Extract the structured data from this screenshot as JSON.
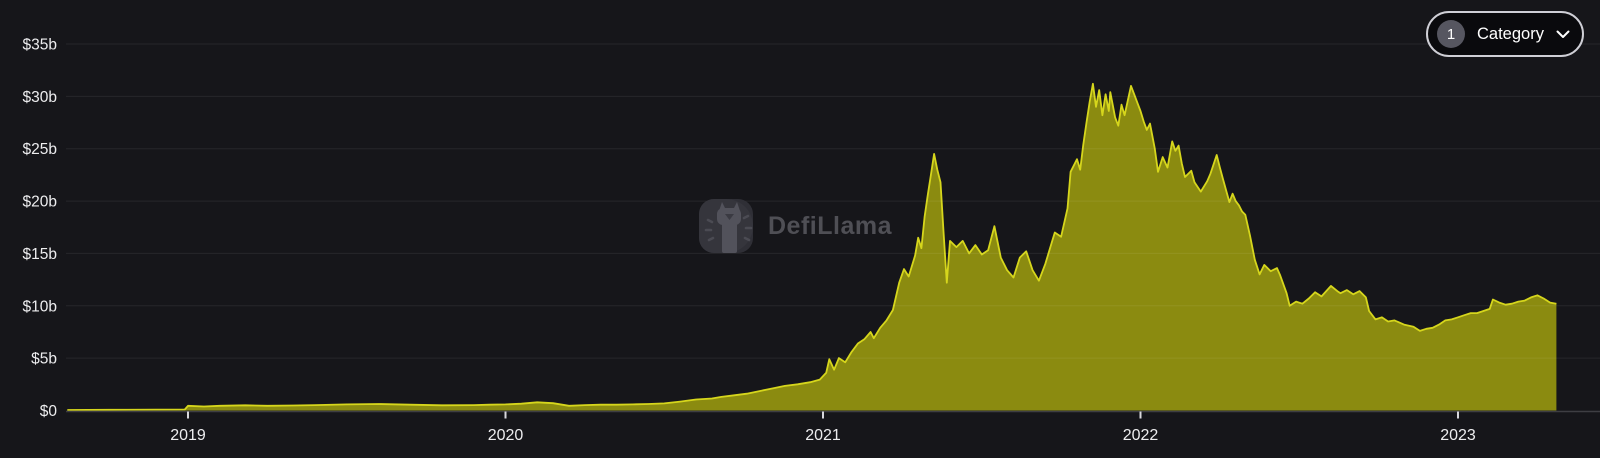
{
  "watermark": {
    "brand": "DefiLlama"
  },
  "controls": {
    "category_filter": {
      "count": "1",
      "label": "Category",
      "chevron_icon": "chevron-down"
    }
  },
  "chart_data": {
    "type": "area",
    "title": "",
    "xlabel": "",
    "ylabel": "",
    "grid": true,
    "legend": false,
    "ylim": [
      0,
      35
    ],
    "y_ticks": [
      {
        "label": "$0",
        "v": 0
      },
      {
        "label": "$5b",
        "v": 5
      },
      {
        "label": "$10b",
        "v": 10
      },
      {
        "label": "$15b",
        "v": 15
      },
      {
        "label": "$20b",
        "v": 20
      },
      {
        "label": "$25b",
        "v": 25
      },
      {
        "label": "$30b",
        "v": 30
      },
      {
        "label": "$35b",
        "v": 35
      }
    ],
    "x_ticks": [
      {
        "label": "2019",
        "t": 2019
      },
      {
        "label": "2020",
        "t": 2020
      },
      {
        "label": "2021",
        "t": 2021
      },
      {
        "label": "2022",
        "t": 2022
      },
      {
        "label": "2023",
        "t": 2023
      }
    ],
    "colors": {
      "background": "#16161a",
      "area_fill": "#8b8b10",
      "area_line": "#d6d61c",
      "grid_line": "rgba(255,255,255,0.07)",
      "axis_line": "#3e3e43",
      "tick_mark": "#d8d8dc",
      "label_text": "#ededef"
    },
    "series": [
      {
        "name": "tvl_usd_billions",
        "points": [
          [
            2018.62,
            0.05
          ],
          [
            2018.75,
            0.07
          ],
          [
            2018.9,
            0.09
          ],
          [
            2018.99,
            0.1
          ],
          [
            2019.0,
            0.45
          ],
          [
            2019.05,
            0.38
          ],
          [
            2019.1,
            0.45
          ],
          [
            2019.18,
            0.5
          ],
          [
            2019.25,
            0.45
          ],
          [
            2019.33,
            0.48
          ],
          [
            2019.4,
            0.52
          ],
          [
            2019.5,
            0.58
          ],
          [
            2019.6,
            0.62
          ],
          [
            2019.7,
            0.55
          ],
          [
            2019.8,
            0.5
          ],
          [
            2019.9,
            0.52
          ],
          [
            2019.95,
            0.55
          ],
          [
            2020.0,
            0.58
          ],
          [
            2020.05,
            0.65
          ],
          [
            2020.1,
            0.78
          ],
          [
            2020.15,
            0.7
          ],
          [
            2020.2,
            0.45
          ],
          [
            2020.25,
            0.52
          ],
          [
            2020.3,
            0.55
          ],
          [
            2020.35,
            0.55
          ],
          [
            2020.4,
            0.58
          ],
          [
            2020.45,
            0.62
          ],
          [
            2020.5,
            0.68
          ],
          [
            2020.55,
            0.85
          ],
          [
            2020.6,
            1.05
          ],
          [
            2020.65,
            1.15
          ],
          [
            2020.68,
            1.3
          ],
          [
            2020.72,
            1.45
          ],
          [
            2020.76,
            1.6
          ],
          [
            2020.8,
            1.85
          ],
          [
            2020.84,
            2.1
          ],
          [
            2020.88,
            2.35
          ],
          [
            2020.92,
            2.5
          ],
          [
            2020.96,
            2.7
          ],
          [
            2020.99,
            2.95
          ],
          [
            2021.01,
            3.6
          ],
          [
            2021.02,
            4.9
          ],
          [
            2021.035,
            3.9
          ],
          [
            2021.05,
            5.0
          ],
          [
            2021.07,
            4.6
          ],
          [
            2021.09,
            5.6
          ],
          [
            2021.11,
            6.4
          ],
          [
            2021.13,
            6.8
          ],
          [
            2021.15,
            7.5
          ],
          [
            2021.16,
            6.9
          ],
          [
            2021.18,
            7.9
          ],
          [
            2021.2,
            8.6
          ],
          [
            2021.22,
            9.6
          ],
          [
            2021.24,
            12.2
          ],
          [
            2021.255,
            13.5
          ],
          [
            2021.27,
            12.8
          ],
          [
            2021.29,
            14.8
          ],
          [
            2021.3,
            16.5
          ],
          [
            2021.31,
            15.5
          ],
          [
            2021.32,
            18.5
          ],
          [
            2021.33,
            20.6
          ],
          [
            2021.34,
            22.5
          ],
          [
            2021.35,
            24.5
          ],
          [
            2021.36,
            23.0
          ],
          [
            2021.37,
            21.8
          ],
          [
            2021.38,
            16.8
          ],
          [
            2021.39,
            12.2
          ],
          [
            2021.4,
            16.2
          ],
          [
            2021.42,
            15.6
          ],
          [
            2021.44,
            16.2
          ],
          [
            2021.46,
            15.0
          ],
          [
            2021.48,
            15.8
          ],
          [
            2021.5,
            14.9
          ],
          [
            2021.52,
            15.3
          ],
          [
            2021.54,
            17.6
          ],
          [
            2021.56,
            14.6
          ],
          [
            2021.58,
            13.4
          ],
          [
            2021.6,
            12.7
          ],
          [
            2021.62,
            14.6
          ],
          [
            2021.64,
            15.2
          ],
          [
            2021.66,
            13.4
          ],
          [
            2021.68,
            12.4
          ],
          [
            2021.7,
            14.0
          ],
          [
            2021.72,
            16.0
          ],
          [
            2021.73,
            17.0
          ],
          [
            2021.75,
            16.6
          ],
          [
            2021.77,
            19.3
          ],
          [
            2021.78,
            22.8
          ],
          [
            2021.8,
            24.0
          ],
          [
            2021.81,
            23.0
          ],
          [
            2021.82,
            25.4
          ],
          [
            2021.83,
            27.5
          ],
          [
            2021.84,
            29.5
          ],
          [
            2021.85,
            31.2
          ],
          [
            2021.86,
            29.0
          ],
          [
            2021.87,
            30.6
          ],
          [
            2021.88,
            28.2
          ],
          [
            2021.89,
            30.2
          ],
          [
            2021.9,
            28.6
          ],
          [
            2021.905,
            30.4
          ],
          [
            2021.91,
            29.6
          ],
          [
            2021.92,
            28.0
          ],
          [
            2021.93,
            27.2
          ],
          [
            2021.94,
            29.2
          ],
          [
            2021.95,
            28.2
          ],
          [
            2021.96,
            29.6
          ],
          [
            2021.97,
            31.0
          ],
          [
            2021.98,
            30.2
          ],
          [
            2021.99,
            29.4
          ],
          [
            2022.0,
            28.6
          ],
          [
            2022.01,
            27.6
          ],
          [
            2022.02,
            26.8
          ],
          [
            2022.03,
            27.4
          ],
          [
            2022.045,
            25.0
          ],
          [
            2022.055,
            22.8
          ],
          [
            2022.07,
            24.2
          ],
          [
            2022.085,
            23.2
          ],
          [
            2022.1,
            25.7
          ],
          [
            2022.11,
            24.8
          ],
          [
            2022.12,
            25.3
          ],
          [
            2022.13,
            23.6
          ],
          [
            2022.14,
            22.3
          ],
          [
            2022.16,
            22.9
          ],
          [
            2022.17,
            21.8
          ],
          [
            2022.19,
            20.9
          ],
          [
            2022.21,
            21.9
          ],
          [
            2022.22,
            22.6
          ],
          [
            2022.24,
            24.4
          ],
          [
            2022.25,
            23.2
          ],
          [
            2022.26,
            22.1
          ],
          [
            2022.28,
            19.9
          ],
          [
            2022.29,
            20.7
          ],
          [
            2022.3,
            20.0
          ],
          [
            2022.31,
            19.6
          ],
          [
            2022.32,
            19.0
          ],
          [
            2022.33,
            18.7
          ],
          [
            2022.345,
            16.7
          ],
          [
            2022.36,
            14.4
          ],
          [
            2022.375,
            13.0
          ],
          [
            2022.39,
            13.9
          ],
          [
            2022.41,
            13.3
          ],
          [
            2022.43,
            13.6
          ],
          [
            2022.44,
            12.9
          ],
          [
            2022.46,
            11.2
          ],
          [
            2022.47,
            10.0
          ],
          [
            2022.49,
            10.4
          ],
          [
            2022.51,
            10.2
          ],
          [
            2022.53,
            10.7
          ],
          [
            2022.55,
            11.3
          ],
          [
            2022.57,
            10.9
          ],
          [
            2022.6,
            11.9
          ],
          [
            2022.62,
            11.4
          ],
          [
            2022.63,
            11.2
          ],
          [
            2022.65,
            11.5
          ],
          [
            2022.67,
            11.1
          ],
          [
            2022.69,
            11.4
          ],
          [
            2022.71,
            10.8
          ],
          [
            2022.72,
            9.5
          ],
          [
            2022.74,
            8.7
          ],
          [
            2022.76,
            8.9
          ],
          [
            2022.78,
            8.5
          ],
          [
            2022.8,
            8.6
          ],
          [
            2022.83,
            8.2
          ],
          [
            2022.86,
            8.0
          ],
          [
            2022.88,
            7.6
          ],
          [
            2022.9,
            7.8
          ],
          [
            2022.92,
            7.9
          ],
          [
            2022.94,
            8.2
          ],
          [
            2022.96,
            8.6
          ],
          [
            2022.98,
            8.7
          ],
          [
            2023.0,
            8.9
          ],
          [
            2023.02,
            9.1
          ],
          [
            2023.04,
            9.3
          ],
          [
            2023.06,
            9.3
          ],
          [
            2023.08,
            9.5
          ],
          [
            2023.1,
            9.7
          ],
          [
            2023.11,
            10.6
          ],
          [
            2023.13,
            10.3
          ],
          [
            2023.15,
            10.1
          ],
          [
            2023.17,
            10.2
          ],
          [
            2023.19,
            10.4
          ],
          [
            2023.21,
            10.5
          ],
          [
            2023.23,
            10.8
          ],
          [
            2023.25,
            11.0
          ],
          [
            2023.27,
            10.7
          ],
          [
            2023.29,
            10.3
          ],
          [
            2023.31,
            10.2
          ]
        ]
      }
    ]
  }
}
